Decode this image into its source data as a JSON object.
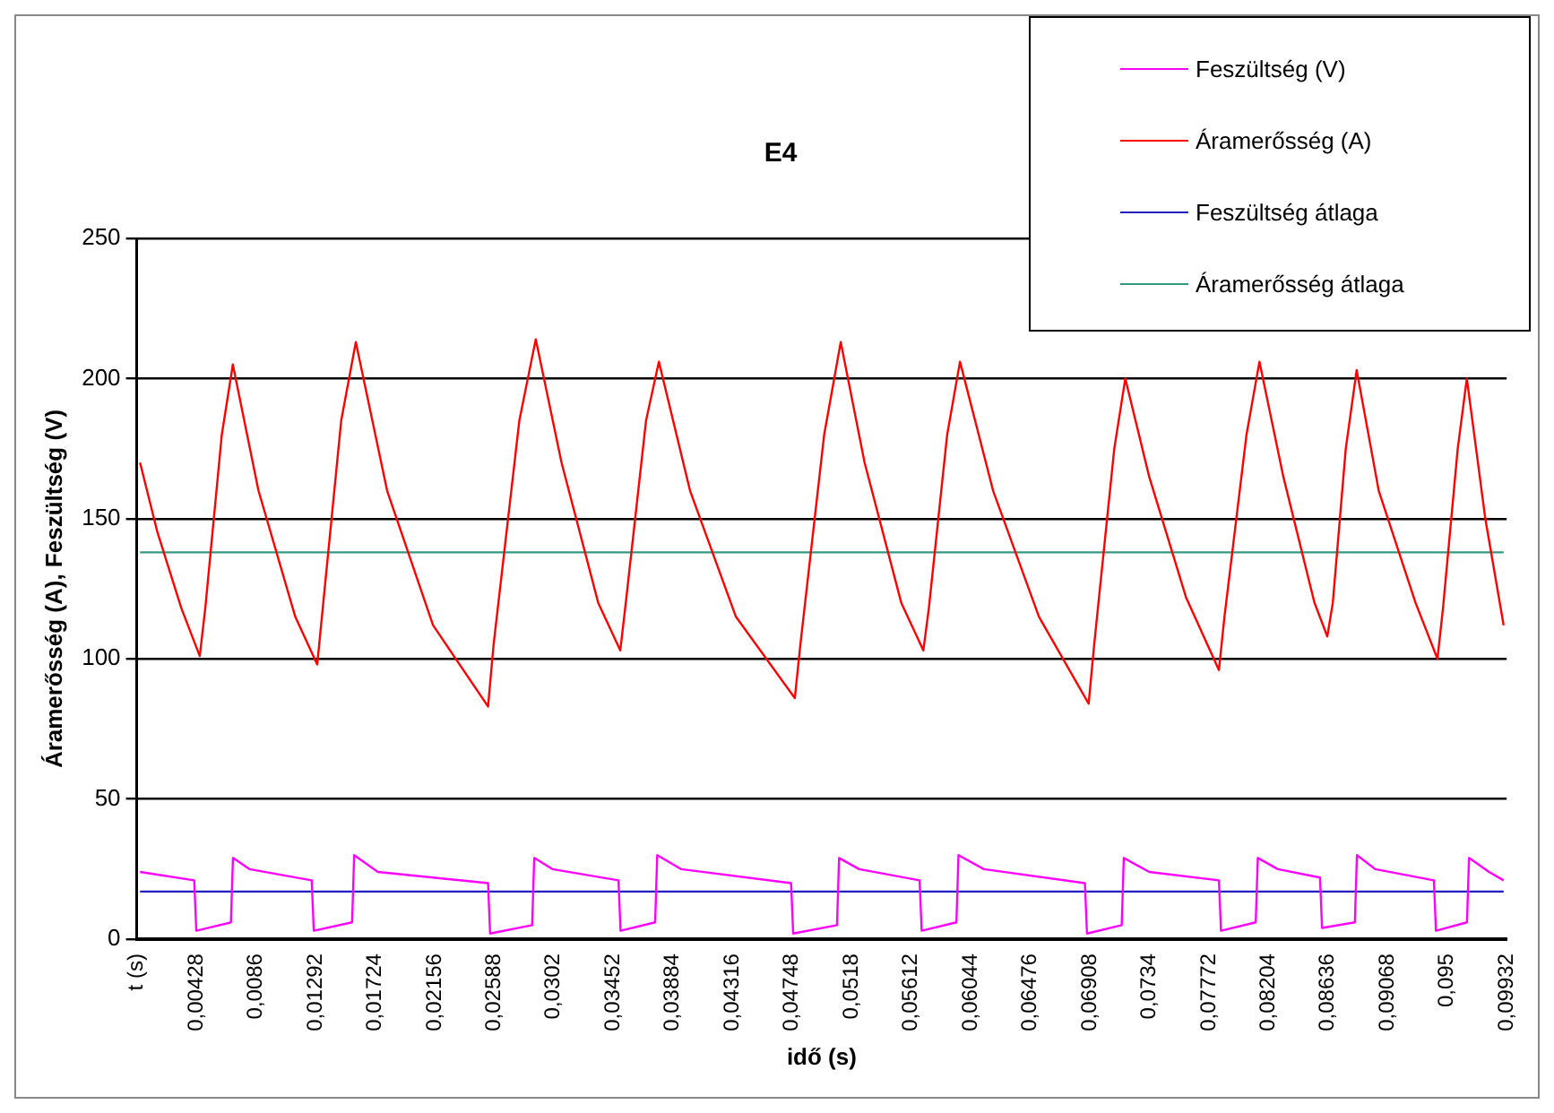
{
  "chart_data": {
    "type": "line",
    "title": "E4",
    "xlabel": "idő (s)",
    "ylabel": "Áramerősség (A), Feszültség (V)",
    "xlim": [
      -4e-05,
      0.09932
    ],
    "xticks": [
      {
        "value": -4e-05,
        "label": "t (s)"
      },
      {
        "value": 0.00428,
        "label": "0,00428"
      },
      {
        "value": 0.0086,
        "label": "0,0086"
      },
      {
        "value": 0.01292,
        "label": "0,01292"
      },
      {
        "value": 0.01724,
        "label": "0,01724"
      },
      {
        "value": 0.02156,
        "label": "0,02156"
      },
      {
        "value": 0.02588,
        "label": "0,02588"
      },
      {
        "value": 0.0302,
        "label": "0,0302"
      },
      {
        "value": 0.03452,
        "label": "0,03452"
      },
      {
        "value": 0.03884,
        "label": "0,03884"
      },
      {
        "value": 0.04316,
        "label": "0,04316"
      },
      {
        "value": 0.04748,
        "label": "0,04748"
      },
      {
        "value": 0.0518,
        "label": "0,0518"
      },
      {
        "value": 0.05612,
        "label": "0,05612"
      },
      {
        "value": 0.06044,
        "label": "0,06044"
      },
      {
        "value": 0.06476,
        "label": "0,06476"
      },
      {
        "value": 0.06908,
        "label": "0,06908"
      },
      {
        "value": 0.0734,
        "label": "0,0734"
      },
      {
        "value": 0.07772,
        "label": "0,07772"
      },
      {
        "value": 0.08204,
        "label": "0,08204"
      },
      {
        "value": 0.08636,
        "label": "0,08636"
      },
      {
        "value": 0.09068,
        "label": "0,09068"
      },
      {
        "value": 0.095,
        "label": "0,095"
      },
      {
        "value": 0.09932,
        "label": "0,09932"
      }
    ],
    "ylim": [
      0,
      250
    ],
    "yticks": [
      0,
      50,
      100,
      150,
      200,
      250
    ],
    "grid": "y",
    "legend": "top right",
    "marker": "none",
    "line_style": "solid",
    "series": [
      {
        "name": "Feszültség (V)",
        "color": "#ff00ff",
        "x": [
          0.0002,
          0.00413,
          0.00428,
          0.00679,
          0.00694,
          0.00813,
          0.01265,
          0.0128,
          0.01558,
          0.01573,
          0.01745,
          0.02544,
          0.02559,
          0.02864,
          0.02879,
          0.0301,
          0.0349,
          0.03505,
          0.03756,
          0.03771,
          0.03943,
          0.04742,
          0.04757,
          0.05075,
          0.0509,
          0.05235,
          0.05674,
          0.05689,
          0.05941,
          0.05956,
          0.0614,
          0.06873,
          0.06888,
          0.0714,
          0.07155,
          0.07339,
          0.07845,
          0.0786,
          0.08112,
          0.08127,
          0.08272,
          0.08578,
          0.08593,
          0.08831,
          0.08846,
          0.08978,
          0.09404,
          0.09419,
          0.09644,
          0.09659,
          0.09804,
          0.0991
        ],
        "values": [
          24,
          21,
          3,
          6,
          29,
          25,
          21,
          3,
          6,
          30,
          24,
          20,
          2,
          5,
          29,
          25,
          21,
          3,
          6,
          30,
          25,
          20,
          2,
          5,
          29,
          25,
          21,
          3,
          6,
          30,
          25,
          20,
          2,
          5,
          29,
          24,
          21,
          3,
          6,
          29,
          25,
          22,
          4,
          6,
          30,
          25,
          21,
          3,
          6,
          29,
          24,
          21
        ]
      },
      {
        "name": "Áramerősség (A)",
        "color": "#ff0000",
        "x": [
          0.0002,
          0.00147,
          0.0032,
          0.00453,
          0.00493,
          0.00613,
          0.00693,
          0.00879,
          0.01146,
          0.01305,
          0.01345,
          0.01479,
          0.01585,
          0.01812,
          0.02145,
          0.02544,
          0.02584,
          0.02771,
          0.0289,
          0.03077,
          0.03343,
          0.03503,
          0.03543,
          0.0369,
          0.03783,
          0.04009,
          0.04342,
          0.04769,
          0.04809,
          0.04982,
          0.05102,
          0.05275,
          0.05541,
          0.05701,
          0.05741,
          0.05874,
          0.05967,
          0.06207,
          0.0654,
          0.069,
          0.0694,
          0.07086,
          0.07166,
          0.07339,
          0.07606,
          0.07845,
          0.07885,
          0.08045,
          0.08139,
          0.08312,
          0.08538,
          0.08631,
          0.08671,
          0.08765,
          0.08844,
          0.09004,
          0.09271,
          0.0943,
          0.0947,
          0.09577,
          0.09643,
          0.09777,
          0.0991
        ],
        "values": [
          170,
          145,
          118,
          101,
          118,
          180,
          205,
          160,
          115,
          98,
          118,
          185,
          213,
          160,
          112,
          83,
          105,
          185,
          214,
          170,
          120,
          103,
          120,
          185,
          206,
          160,
          115,
          86,
          105,
          180,
          213,
          170,
          120,
          103,
          118,
          180,
          206,
          160,
          115,
          84,
          105,
          175,
          200,
          165,
          122,
          96,
          115,
          180,
          206,
          165,
          120,
          108,
          120,
          175,
          203,
          160,
          120,
          100,
          118,
          175,
          200,
          150,
          112
        ]
      },
      {
        "name": "Feszültség átlaga",
        "color": "#2020c0",
        "x": [
          0.0002,
          0.0991
        ],
        "values": [
          17,
          17
        ]
      },
      {
        "name": "Áramerősség átlaga",
        "color": "#339980",
        "x": [
          0.0002,
          0.0991
        ],
        "values": [
          138,
          138
        ]
      }
    ]
  }
}
